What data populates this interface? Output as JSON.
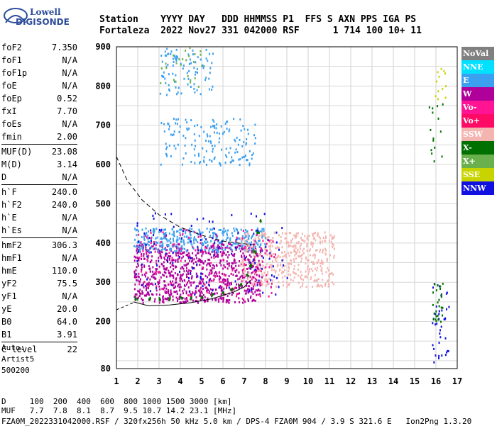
{
  "logo": {
    "line1": "Lowell",
    "line2": "DIGISONDE"
  },
  "header": {
    "line1": "Station    YYYY DAY   DDD HHMMSS P1  FFS S AXN PPS IGA PS",
    "line2": "Fortaleza  2022 Nov27 331 042000 RSF      1 714 100 10+ 11"
  },
  "params": [
    [
      [
        "foF2",
        "7.350"
      ],
      [
        "foF1",
        "N/A"
      ],
      [
        "foF1p",
        "N/A"
      ],
      [
        "foE",
        "N/A"
      ],
      [
        "foEp",
        "0.52"
      ],
      [
        "fxI",
        "7.70"
      ],
      [
        "foEs",
        "N/A"
      ],
      [
        "fmin",
        "2.00"
      ]
    ],
    [
      [
        "MUF(D)",
        "23.08"
      ],
      [
        "M(D)",
        "3.14"
      ],
      [
        "D",
        "N/A"
      ]
    ],
    [
      [
        "h`F",
        "240.0"
      ],
      [
        "h`F2",
        "240.0"
      ],
      [
        "h`E",
        "N/A"
      ],
      [
        "h`Es",
        "N/A"
      ]
    ],
    [
      [
        "hmF2",
        "306.3"
      ],
      [
        "hmF1",
        "N/A"
      ],
      [
        "hmE",
        "110.0"
      ],
      [
        "yF2",
        "75.5"
      ],
      [
        "yF1",
        "N/A"
      ],
      [
        "yE",
        "20.0"
      ],
      [
        "B0",
        "64.0"
      ],
      [
        "B1",
        "3.91"
      ]
    ],
    [
      [
        "C-level",
        "22"
      ]
    ]
  ],
  "auto": [
    "Auto:",
    "Artist5",
    "500200"
  ],
  "footer": {
    "line1": "D     100  200  400  600  800 1000 1500 3000 [km]",
    "line2": "MUF   7.7  7.8  8.1  8.7  9.5 10.7 14.2 23.1 [MHz]",
    "line3": "FZA0M_2022331042000.RSF / 320fx256h 50 kHz 5.0 km / DPS-4 FZA0M 904 / 3.9 S 321.6 E   Ion2Png 1.3.20"
  },
  "legend": [
    {
      "label": "NoVal",
      "color": "#808080"
    },
    {
      "label": "NNE",
      "color": "#00e0ff"
    },
    {
      "label": "E",
      "color": "#3ca0f0"
    },
    {
      "label": "W",
      "color": "#b0009a"
    },
    {
      "label": "Vo-",
      "color": "#ff1493"
    },
    {
      "label": "Vo+",
      "color": "#ff0a64"
    },
    {
      "label": "SSW",
      "color": "#f4b4b0"
    },
    {
      "label": "X-",
      "color": "#007000"
    },
    {
      "label": "X+",
      "color": "#6ab04c"
    },
    {
      "label": "SSE",
      "color": "#c8d400"
    },
    {
      "label": "NNW",
      "color": "#1010e0"
    }
  ],
  "chart_data": {
    "type": "scatter",
    "xlim": [
      1,
      17
    ],
    "ylim": [
      80,
      900
    ],
    "x_ticks": [
      1,
      2,
      3,
      4,
      5,
      6,
      7,
      8,
      9,
      10,
      11,
      12,
      13,
      14,
      15,
      16,
      17
    ],
    "y_ticks": [
      80,
      200,
      300,
      400,
      500,
      600,
      700,
      800,
      900
    ],
    "grid": true,
    "profile_solid": [
      [
        1.8,
        250
      ],
      [
        2.5,
        240
      ],
      [
        3.5,
        242
      ],
      [
        4.5,
        248
      ],
      [
        5.5,
        258
      ],
      [
        6.5,
        275
      ],
      [
        7.0,
        288
      ],
      [
        7.3,
        306
      ]
    ],
    "profile_dashed": [
      [
        1.0,
        230
      ],
      [
        1.8,
        248
      ]
    ],
    "muf_dashed": [
      [
        1.0,
        620
      ],
      [
        1.5,
        560
      ],
      [
        2.2,
        510
      ],
      [
        3.0,
        472
      ],
      [
        4.0,
        440
      ],
      [
        5.0,
        420
      ],
      [
        6.0,
        405
      ],
      [
        7.0,
        398
      ],
      [
        7.5,
        395
      ]
    ],
    "trace_xminus": [
      [
        1.9,
        262
      ],
      [
        2.5,
        260
      ],
      [
        3.0,
        259
      ],
      [
        3.5,
        260
      ],
      [
        4.0,
        261
      ],
      [
        4.5,
        263
      ],
      [
        5.0,
        266
      ],
      [
        5.5,
        270
      ],
      [
        6.0,
        276
      ],
      [
        6.4,
        283
      ],
      [
        6.8,
        297
      ],
      [
        7.1,
        320
      ],
      [
        7.3,
        345
      ],
      [
        7.45,
        380
      ],
      [
        7.6,
        430
      ],
      [
        7.7,
        460
      ]
    ],
    "clouds": [
      {
        "color": "#b0009a",
        "x": [
          1.8,
          7.8
        ],
        "y": [
          250,
          400
        ],
        "n": 900
      },
      {
        "color": "#3ca0f0",
        "x": [
          1.8,
          8.0
        ],
        "y": [
          380,
          440
        ],
        "n": 350
      },
      {
        "color": "#3ca0f0",
        "x": [
          3.0,
          7.5
        ],
        "y": [
          600,
          720
        ],
        "n": 160
      },
      {
        "color": "#3ca0f0",
        "x": [
          3.0,
          5.5
        ],
        "y": [
          780,
          900
        ],
        "n": 90
      },
      {
        "color": "#f4b4b0",
        "x": [
          6.8,
          11.2
        ],
        "y": [
          290,
          430
        ],
        "n": 450
      },
      {
        "color": "#1010e0",
        "x": [
          1.8,
          9.0
        ],
        "y": [
          270,
          480
        ],
        "n": 140
      },
      {
        "color": "#ff1493",
        "x": [
          2.0,
          8.5
        ],
        "y": [
          260,
          440
        ],
        "n": 140
      },
      {
        "color": "#1010e0",
        "x": [
          15.8,
          16.6
        ],
        "y": [
          90,
          300
        ],
        "n": 40
      },
      {
        "color": "#007000",
        "x": [
          15.8,
          16.3
        ],
        "y": [
          200,
          300
        ],
        "n": 25
      },
      {
        "color": "#007000",
        "x": [
          15.6,
          16.3
        ],
        "y": [
          600,
          780
        ],
        "n": 15
      },
      {
        "color": "#c8d400",
        "x": [
          15.9,
          16.5
        ],
        "y": [
          750,
          880
        ],
        "n": 12
      },
      {
        "color": "#6ab04c",
        "x": [
          3.0,
          5.0
        ],
        "y": [
          800,
          900
        ],
        "n": 25
      }
    ]
  }
}
